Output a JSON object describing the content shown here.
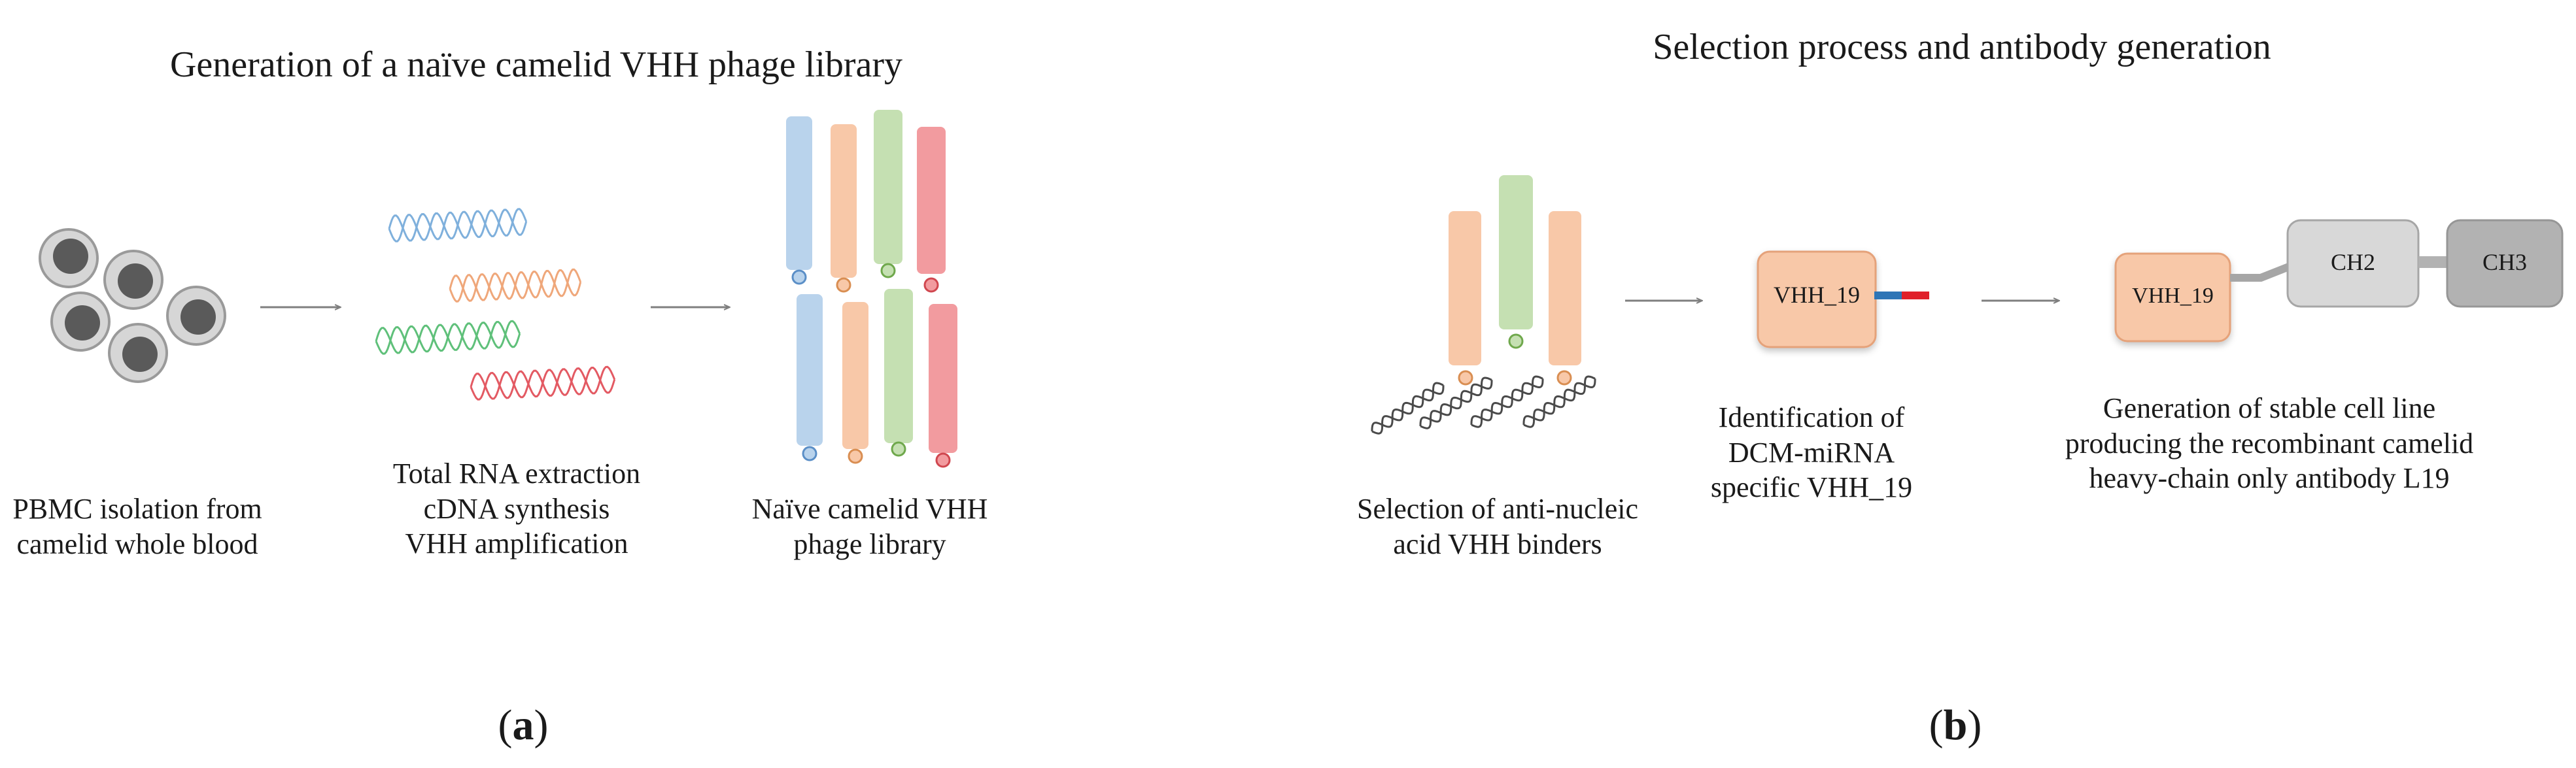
{
  "panel_a": {
    "title": "Generation of a naïve camelid VHH phage library",
    "label": "a",
    "captions": {
      "pbmc": [
        "PBMC isolation  from",
        "camelid whole blood"
      ],
      "rna": [
        "Total RNA extraction",
        "cDNA synthesis",
        "VHH amplification"
      ],
      "library": [
        "Naïve camelid VHH",
        "phage library"
      ]
    }
  },
  "panel_b": {
    "title": "Selection process and antibody generation",
    "label": "b",
    "captions": {
      "selection": [
        "Selection of anti-nucleic",
        "acid VHH binders"
      ],
      "identification": [
        "Identification of",
        "DCM-miRNA",
        "specific VHH_19"
      ],
      "generation": [
        "Generation of stable cell line",
        "producing the recombinant camelid",
        "heavy-chain only antibody L19"
      ]
    },
    "boxes": {
      "vhh_identified": "VHH_19",
      "vhh_antibody": "VHH_19",
      "ch2": "CH2",
      "ch3": "CH3"
    }
  },
  "colors": {
    "blue": "#b9d3ec",
    "orange": "#f8c8a8",
    "green": "#c5e0b2",
    "red": "#f29b9f",
    "grey_box": "#d8d8d8",
    "dark_box": "#b2b2b2",
    "arrow": "#7f7f7f"
  }
}
